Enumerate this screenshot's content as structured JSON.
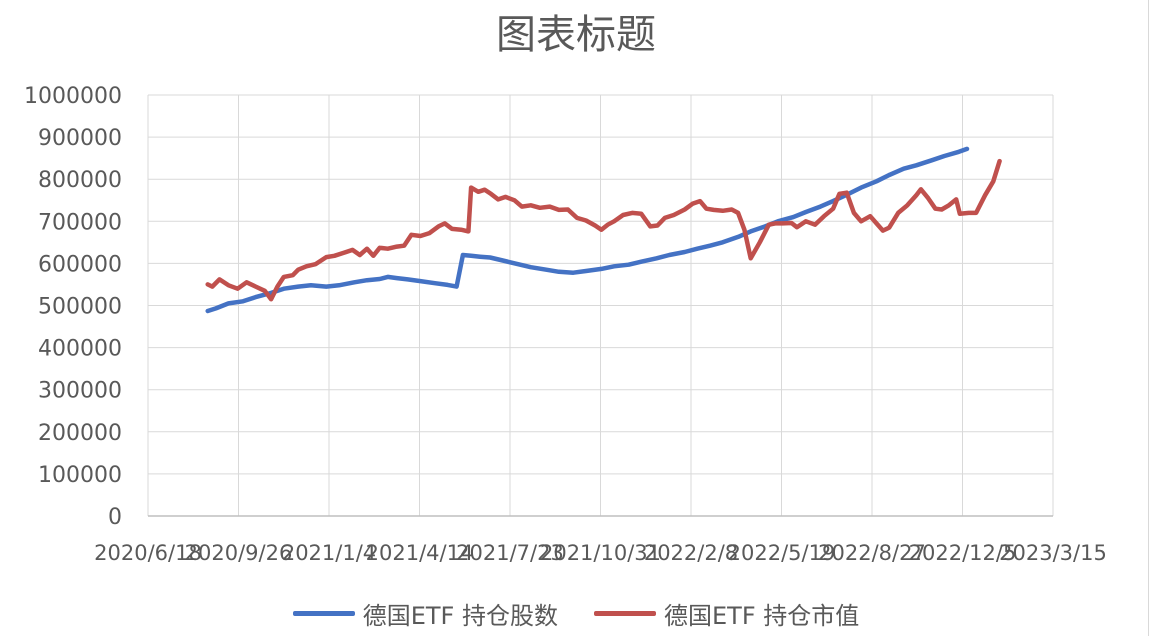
{
  "chart_data": {
    "type": "line",
    "title": "图表标题",
    "xlabel": "",
    "ylabel": "",
    "ylim": [
      0,
      1000000
    ],
    "yticks": [
      0,
      100000,
      200000,
      300000,
      400000,
      500000,
      600000,
      700000,
      800000,
      900000,
      1000000
    ],
    "ytick_labels": [
      "0",
      "100000",
      "200000",
      "300000",
      "400000",
      "500000",
      "600000",
      "700000",
      "800000",
      "900000",
      "1000000"
    ],
    "xlim": [
      "2020-06-18",
      "2023-03-15"
    ],
    "xtick_labels": [
      "2020/6/18",
      "2020/9/26",
      "2021/1/4",
      "2021/4/14",
      "2021/7/23",
      "2021/10/31",
      "2022/2/8",
      "2022/5/19",
      "2022/8/27",
      "2022/12/5",
      "2023/3/15"
    ],
    "grid": true,
    "legend_position": "bottom",
    "series": [
      {
        "name": "德国ETF 持仓股数",
        "color": "#4472C4",
        "points": [
          [
            "2020-08-23",
            487000
          ],
          [
            "2020-09-01",
            493000
          ],
          [
            "2020-09-15",
            505000
          ],
          [
            "2020-10-01",
            510000
          ],
          [
            "2020-10-15",
            520000
          ],
          [
            "2020-11-01",
            530000
          ],
          [
            "2020-11-15",
            540000
          ],
          [
            "2020-12-01",
            545000
          ],
          [
            "2020-12-15",
            548000
          ],
          [
            "2021-01-01",
            545000
          ],
          [
            "2021-01-15",
            548000
          ],
          [
            "2021-02-01",
            555000
          ],
          [
            "2021-02-15",
            560000
          ],
          [
            "2021-03-01",
            563000
          ],
          [
            "2021-03-10",
            568000
          ],
          [
            "2021-03-20",
            565000
          ],
          [
            "2021-04-01",
            562000
          ],
          [
            "2021-04-15",
            558000
          ],
          [
            "2021-05-01",
            553000
          ],
          [
            "2021-05-15",
            549000
          ],
          [
            "2021-05-25",
            545000
          ],
          [
            "2021-06-01",
            620000
          ],
          [
            "2021-06-10",
            618000
          ],
          [
            "2021-06-20",
            616000
          ],
          [
            "2021-07-01",
            614000
          ],
          [
            "2021-07-15",
            607000
          ],
          [
            "2021-08-01",
            598000
          ],
          [
            "2021-08-15",
            591000
          ],
          [
            "2021-09-01",
            585000
          ],
          [
            "2021-09-15",
            580000
          ],
          [
            "2021-10-01",
            578000
          ],
          [
            "2021-10-15",
            582000
          ],
          [
            "2021-11-01",
            587000
          ],
          [
            "2021-11-15",
            593000
          ],
          [
            "2021-12-01",
            597000
          ],
          [
            "2021-12-15",
            604000
          ],
          [
            "2022-01-01",
            612000
          ],
          [
            "2022-01-15",
            620000
          ],
          [
            "2022-02-01",
            627000
          ],
          [
            "2022-02-15",
            635000
          ],
          [
            "2022-03-01",
            642000
          ],
          [
            "2022-03-15",
            650000
          ],
          [
            "2022-04-01",
            663000
          ],
          [
            "2022-04-15",
            676000
          ],
          [
            "2022-05-01",
            688000
          ],
          [
            "2022-05-15",
            700000
          ],
          [
            "2022-06-01",
            710000
          ],
          [
            "2022-06-15",
            722000
          ],
          [
            "2022-07-01",
            735000
          ],
          [
            "2022-07-15",
            748000
          ],
          [
            "2022-08-01",
            765000
          ],
          [
            "2022-08-15",
            780000
          ],
          [
            "2022-09-01",
            795000
          ],
          [
            "2022-09-15",
            810000
          ],
          [
            "2022-10-01",
            825000
          ],
          [
            "2022-10-15",
            833000
          ],
          [
            "2022-11-01",
            845000
          ],
          [
            "2022-11-15",
            855000
          ],
          [
            "2022-12-01",
            865000
          ],
          [
            "2022-12-10",
            872000
          ]
        ]
      },
      {
        "name": "德国ETF 持仓市值",
        "color": "#C0504D",
        "points": [
          [
            "2020-08-23",
            550000
          ],
          [
            "2020-08-28",
            545000
          ],
          [
            "2020-09-05",
            562000
          ],
          [
            "2020-09-15",
            548000
          ],
          [
            "2020-09-25",
            540000
          ],
          [
            "2020-10-05",
            555000
          ],
          [
            "2020-10-15",
            545000
          ],
          [
            "2020-10-25",
            535000
          ],
          [
            "2020-11-01",
            515000
          ],
          [
            "2020-11-08",
            545000
          ],
          [
            "2020-11-15",
            568000
          ],
          [
            "2020-11-25",
            572000
          ],
          [
            "2020-12-01",
            585000
          ],
          [
            "2020-12-10",
            593000
          ],
          [
            "2020-12-20",
            598000
          ],
          [
            "2021-01-01",
            615000
          ],
          [
            "2021-01-10",
            618000
          ],
          [
            "2021-01-20",
            625000
          ],
          [
            "2021-01-30",
            632000
          ],
          [
            "2021-02-07",
            620000
          ],
          [
            "2021-02-15",
            635000
          ],
          [
            "2021-02-22",
            618000
          ],
          [
            "2021-03-01",
            637000
          ],
          [
            "2021-03-10",
            635000
          ],
          [
            "2021-03-20",
            640000
          ],
          [
            "2021-03-28",
            642000
          ],
          [
            "2021-04-05",
            668000
          ],
          [
            "2021-04-15",
            665000
          ],
          [
            "2021-04-25",
            672000
          ],
          [
            "2021-05-05",
            688000
          ],
          [
            "2021-05-12",
            695000
          ],
          [
            "2021-05-20",
            682000
          ],
          [
            "2021-05-30",
            680000
          ],
          [
            "2021-06-07",
            676000
          ],
          [
            "2021-06-10",
            780000
          ],
          [
            "2021-06-18",
            770000
          ],
          [
            "2021-06-25",
            775000
          ],
          [
            "2021-07-02",
            765000
          ],
          [
            "2021-07-10",
            752000
          ],
          [
            "2021-07-18",
            758000
          ],
          [
            "2021-07-28",
            750000
          ],
          [
            "2021-08-05",
            735000
          ],
          [
            "2021-08-15",
            738000
          ],
          [
            "2021-08-25",
            732000
          ],
          [
            "2021-09-05",
            735000
          ],
          [
            "2021-09-15",
            727000
          ],
          [
            "2021-09-25",
            728000
          ],
          [
            "2021-10-05",
            708000
          ],
          [
            "2021-10-15",
            702000
          ],
          [
            "2021-10-25",
            690000
          ],
          [
            "2021-11-01",
            680000
          ],
          [
            "2021-11-08",
            692000
          ],
          [
            "2021-11-15",
            700000
          ],
          [
            "2021-11-25",
            715000
          ],
          [
            "2021-12-05",
            720000
          ],
          [
            "2021-12-15",
            718000
          ],
          [
            "2021-12-25",
            688000
          ],
          [
            "2022-01-02",
            690000
          ],
          [
            "2022-01-10",
            708000
          ],
          [
            "2022-01-20",
            715000
          ],
          [
            "2022-02-01",
            728000
          ],
          [
            "2022-02-10",
            742000
          ],
          [
            "2022-02-18",
            748000
          ],
          [
            "2022-02-25",
            730000
          ],
          [
            "2022-03-05",
            727000
          ],
          [
            "2022-03-15",
            725000
          ],
          [
            "2022-03-25",
            728000
          ],
          [
            "2022-04-01",
            720000
          ],
          [
            "2022-04-08",
            680000
          ],
          [
            "2022-04-15",
            612000
          ],
          [
            "2022-04-25",
            650000
          ],
          [
            "2022-05-05",
            692000
          ],
          [
            "2022-05-12",
            695000
          ],
          [
            "2022-05-20",
            695000
          ],
          [
            "2022-05-30",
            696000
          ],
          [
            "2022-06-05",
            686000
          ],
          [
            "2022-06-15",
            700000
          ],
          [
            "2022-06-25",
            692000
          ],
          [
            "2022-07-05",
            712000
          ],
          [
            "2022-07-15",
            730000
          ],
          [
            "2022-07-22",
            765000
          ],
          [
            "2022-07-30",
            768000
          ],
          [
            "2022-08-07",
            720000
          ],
          [
            "2022-08-15",
            700000
          ],
          [
            "2022-08-25",
            712000
          ],
          [
            "2022-09-01",
            695000
          ],
          [
            "2022-09-08",
            678000
          ],
          [
            "2022-09-15",
            685000
          ],
          [
            "2022-09-25",
            720000
          ],
          [
            "2022-10-05",
            738000
          ],
          [
            "2022-10-15",
            762000
          ],
          [
            "2022-10-20",
            776000
          ],
          [
            "2022-10-28",
            755000
          ],
          [
            "2022-11-05",
            730000
          ],
          [
            "2022-11-12",
            728000
          ],
          [
            "2022-11-20",
            738000
          ],
          [
            "2022-11-28",
            752000
          ],
          [
            "2022-12-02",
            718000
          ],
          [
            "2022-12-12",
            720000
          ],
          [
            "2022-12-20",
            720000
          ],
          [
            "2022-12-30",
            762000
          ],
          [
            "2023-01-08",
            795000
          ],
          [
            "2023-01-15",
            843000
          ]
        ]
      }
    ]
  }
}
